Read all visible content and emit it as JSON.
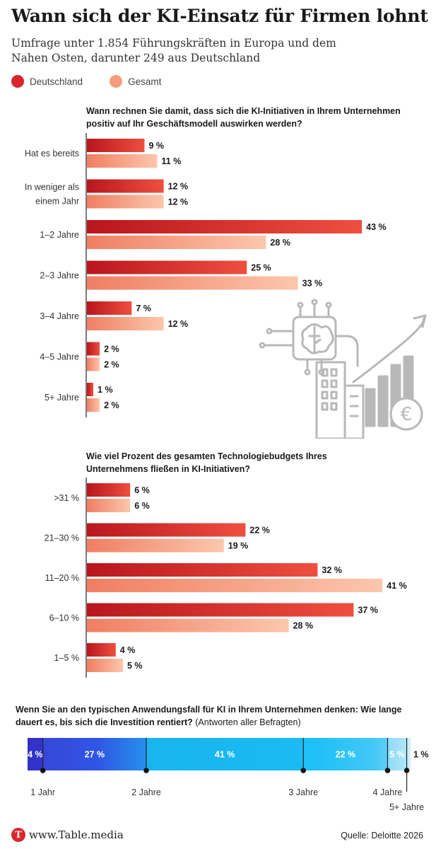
{
  "header": {
    "title": "Wann sich der KI-Einsatz für Firmen lohnt",
    "subtitle": "Umfrage unter 1.854 Führungskräften in Europa und dem Nahen Osten, darunter 249 aus Deutschland"
  },
  "legend": {
    "items": [
      {
        "label": "Deutschland",
        "color": "#d9262c"
      },
      {
        "label": "Gesamt",
        "color": "#f49c7c"
      }
    ]
  },
  "colors": {
    "de_dark": "#d9262c",
    "de_light": "#ef5a48",
    "ges_dark": "#f28466",
    "ges_light": "#fcc4a8",
    "stack": [
      "#2a2ec4",
      "#3658e6",
      "#17b2ef",
      "#1fbdf6",
      "#90d9f7",
      "#c6ecfa"
    ],
    "illustration": "#b8b8b8"
  },
  "footer": {
    "brand": "www.Table.media",
    "logo_letter": "T",
    "source": "Quelle: Deloitte 2026"
  },
  "chart_data": [
    {
      "type": "bar",
      "orientation": "horizontal",
      "title": "Wann rechnen Sie damit, dass sich die KI-Initiativen in Ihrem Unternehmen positiv auf Ihr Geschäftsmodell auswirken werden?",
      "categories": [
        [
          "Hat es bereits"
        ],
        [
          "In weniger als",
          "einem Jahr"
        ],
        [
          "1–2 Jahre"
        ],
        [
          "2–3 Jahre"
        ],
        [
          "3–4 Jahre"
        ],
        [
          "4–5 Jahre"
        ],
        [
          "5+ Jahre"
        ]
      ],
      "unit": "%",
      "series": [
        {
          "name": "Deutschland",
          "values": [
            9,
            12,
            43,
            25,
            7,
            2,
            1
          ]
        },
        {
          "name": "Gesamt",
          "values": [
            11,
            12,
            28,
            33,
            12,
            2,
            2
          ]
        }
      ]
    },
    {
      "type": "bar",
      "orientation": "horizontal",
      "title": "Wie viel Prozent des gesamten Technologiebudgets Ihres Unternehmens fließen in KI-Initiativen?",
      "categories": [
        [
          ">31 %"
        ],
        [
          "21–30 %"
        ],
        [
          "11–20 %"
        ],
        [
          "6–10 %"
        ],
        [
          "1–5 %"
        ]
      ],
      "unit": "%",
      "series": [
        {
          "name": "Deutschland",
          "values": [
            6,
            22,
            32,
            37,
            4
          ]
        },
        {
          "name": "Gesamt",
          "values": [
            6,
            19,
            41,
            28,
            5
          ]
        }
      ]
    },
    {
      "type": "bar",
      "stacked": true,
      "title_bold": "Wenn Sie an den typischen Anwendungsfall für KI in Ihrem Unternehmen denken: Wie lange dauert es, bis sich die Investition rentiert?",
      "title_normal": "(Antworten aller Befragten)",
      "unit": "%",
      "values": [
        4,
        27,
        41,
        22,
        5,
        1
      ],
      "labels": [
        "4 %",
        "27 %",
        "41 %",
        "22 %",
        "5 %",
        "1 %"
      ],
      "milestones": [
        "1 Jahr",
        "2 Jahre",
        "3 Jahre",
        "4 Jahre",
        "5+ Jahre"
      ]
    }
  ]
}
